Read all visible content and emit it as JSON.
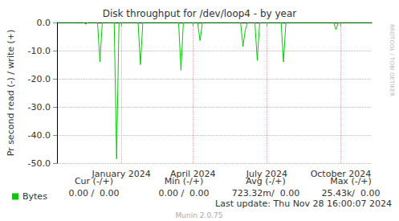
{
  "chart_data": {
    "type": "line",
    "title": "Disk throughput for /dev/loop4 - by year",
    "y_label": "Pr second read (-) / write (+)",
    "categories": [
      null,
      null,
      null,
      null,
      null,
      null,
      null,
      null,
      null,
      null,
      null,
      null,
      null,
      null,
      null,
      null,
      null,
      null,
      null,
      null,
      null,
      null,
      null,
      null,
      null,
      null,
      null,
      "January 2024",
      null,
      null,
      null,
      null,
      null,
      null,
      null,
      null,
      null,
      null,
      null,
      null,
      null,
      null,
      null,
      null,
      null,
      null,
      null,
      null,
      null,
      null,
      null,
      null,
      null,
      null,
      null,
      null,
      null,
      "April 2024",
      null,
      null,
      null,
      null,
      null,
      null,
      null,
      null,
      null,
      null,
      null,
      null,
      null,
      null,
      null,
      null,
      null,
      null,
      null,
      null,
      null,
      null,
      null,
      null,
      null,
      null,
      null,
      null,
      null,
      null,
      "July 2024",
      null,
      null,
      null,
      null,
      null,
      null,
      null,
      null,
      null,
      null,
      null,
      null,
      null,
      null,
      null,
      null,
      null,
      null,
      null,
      null,
      null,
      null,
      null,
      null,
      null,
      null,
      null,
      null,
      null,
      null,
      "October 2024",
      null,
      null,
      null,
      null,
      null,
      null,
      null,
      null,
      null,
      null,
      null,
      null,
      null
    ],
    "series": [
      {
        "name": "Bytes",
        "color": "#00cc00",
        "values": [
          0,
          0,
          0,
          0,
          0,
          0,
          0,
          0,
          0,
          0,
          0,
          0,
          -0.5,
          0,
          0,
          0,
          0,
          0,
          -14,
          0,
          0,
          0,
          0,
          0,
          0,
          -48.5,
          0,
          0,
          0,
          0,
          0,
          0,
          0,
          0,
          0,
          -15,
          0,
          0,
          0,
          0,
          0,
          0,
          0,
          0,
          0,
          0,
          0,
          0,
          0,
          0,
          0,
          0,
          -17,
          0,
          0,
          0,
          0,
          0,
          0,
          0,
          -6.5,
          0,
          0,
          0,
          0,
          0,
          0,
          0,
          0,
          0,
          0,
          0,
          0,
          0,
          0,
          0,
          0,
          0,
          -8.5,
          -2.5,
          0,
          0,
          0,
          0,
          -13.5,
          0,
          0,
          0,
          0,
          0,
          0,
          0,
          0,
          0,
          0,
          -14,
          0,
          0,
          0,
          0,
          0,
          0,
          0,
          0,
          0,
          0,
          0,
          0,
          0,
          0,
          0,
          0,
          0,
          0,
          0,
          0,
          0,
          -2.5,
          0,
          0,
          0,
          0,
          0,
          0,
          0,
          0,
          0,
          0,
          0,
          0,
          0,
          0,
          0
        ]
      }
    ],
    "ylim": [
      -50,
      0
    ],
    "yticks": [
      {
        "value": -50,
        "label": "-50.0"
      },
      {
        "value": -40,
        "label": "-40.0"
      },
      {
        "value": -30,
        "label": "-30.0"
      },
      {
        "value": -20,
        "label": "-20.0"
      },
      {
        "value": -10,
        "label": "-10.0"
      },
      {
        "value": 0,
        "label": "0.0"
      }
    ],
    "grid": true,
    "legend": "bottom left",
    "legend_table": {
      "headers": [
        "Cur (-/+)",
        "Min (-/+)",
        "Avg (-/+)",
        "Max (-/+)"
      ],
      "cells": [
        "0.00 /  0.00",
        "0.00 /  0.00",
        "723.32m/  0.00",
        "25.43k/  0.00"
      ]
    },
    "last_update": "Last update: Thu Nov 28 16:00:07 2024",
    "watermark": "RRDTOOL / TOBI OETIKER",
    "credit": "Munin 2.0.75"
  }
}
